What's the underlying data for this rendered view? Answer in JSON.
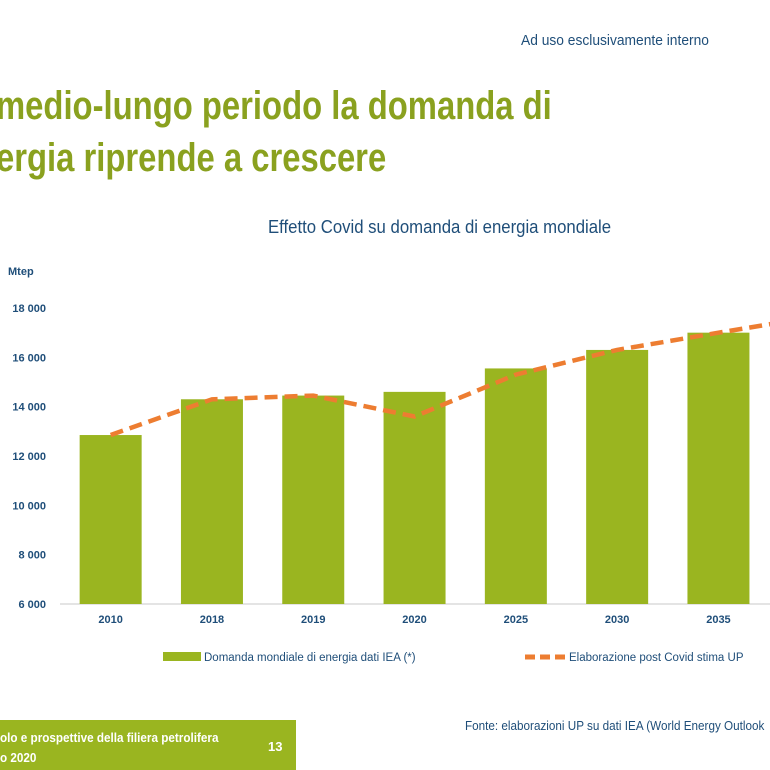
{
  "header": {
    "confidential_note": "Ad uso esclusivamente interno",
    "title_line1": "medio-lungo periodo la domanda di",
    "title_line2": "ergia riprende a crescere"
  },
  "chart_data": {
    "type": "bar",
    "title": "Effetto Covid su domanda di energia mondiale",
    "ylabel": "Mtep",
    "xlabel": "",
    "categories": [
      "2010",
      "2018",
      "2019",
      "2020",
      "2025",
      "2030",
      "2035"
    ],
    "ylim": [
      6000,
      18000
    ],
    "yticks": [
      6000,
      8000,
      10000,
      12000,
      14000,
      16000,
      18000
    ],
    "ytick_labels": [
      "6 000",
      "8 000",
      "10 000",
      "12 000",
      "14 000",
      "16 000",
      "18 000"
    ],
    "grid": false,
    "legend_position": "bottom",
    "series": [
      {
        "name": "Domanda mondiale di energia dati IEA (*)",
        "kind": "bar",
        "color": "#9ab520",
        "values": [
          12850,
          14300,
          14450,
          14600,
          15550,
          16300,
          17000
        ]
      },
      {
        "name": "Elaborazione post Covid stima UP",
        "kind": "line",
        "style": "dashed",
        "color": "#ed7d31",
        "values": [
          12850,
          14300,
          14450,
          13600,
          15300,
          16300,
          17000
        ],
        "extension_value": 17400
      }
    ]
  },
  "footer": {
    "source": "Fonte: elaborazioni UP su dati IEA (World Energy Outlook",
    "line1": "olo e prospettive della filiera petrolifera",
    "line2": "o 2020",
    "page_number": "13"
  }
}
